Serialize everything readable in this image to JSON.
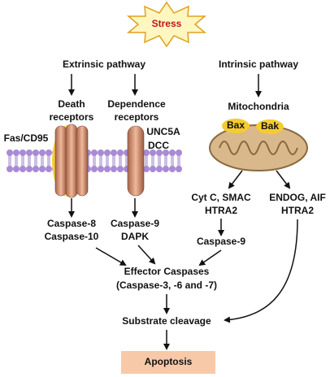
{
  "stress": "Stress",
  "pathways": {
    "extrinsic": "Extrinsic pathway",
    "intrinsic": "Intrinsic pathway"
  },
  "receptors": {
    "death": [
      "Death",
      "receptors"
    ],
    "dependence": [
      "Dependence",
      "receptors"
    ]
  },
  "labels": {
    "fas": "Fas/CD95",
    "unc5a": "UNC5A",
    "dcc": "DCC"
  },
  "mitochondria": {
    "label": "Mitochondria",
    "bax": "Bax",
    "bak": "Bak"
  },
  "intrinsic_branches": [
    [
      "Cyt C, SMAC",
      "HTRA2"
    ],
    [
      "ENDOG, AIF",
      "HTRA2"
    ]
  ],
  "extrinsic_caspases": [
    [
      "Caspase-8",
      "Caspase-10"
    ],
    [
      "Caspase-9",
      "DAPK"
    ]
  ],
  "intrinsic_caspase": "Caspase-9",
  "effector": [
    "Effector Caspases",
    "(Caspase-3, -6 and -7)"
  ],
  "substrate": "Substrate cleavage",
  "outcome": "Apoptosis"
}
